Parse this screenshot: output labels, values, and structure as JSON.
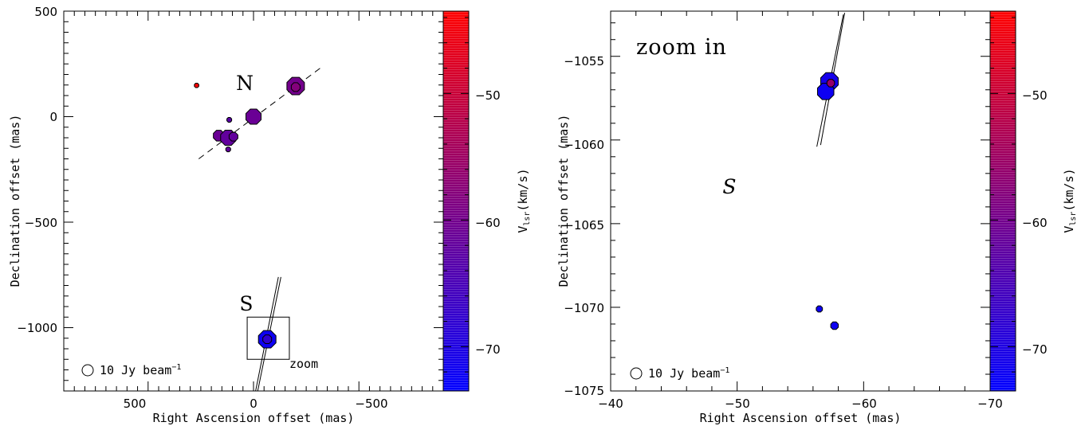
{
  "chart_data": [
    {
      "type": "scatter",
      "xlabel": "Right Ascension offset (mas)",
      "ylabel": "Declination offset (mas)",
      "xlim": [
        900,
        -900
      ],
      "ylim": [
        -1300,
        500
      ],
      "xticks": [
        {
          "value": 500,
          "label": "500"
        },
        {
          "value": 0,
          "label": "0"
        },
        {
          "value": -500,
          "label": "−500"
        }
      ],
      "yticks": [
        {
          "value": 500,
          "label": "500"
        },
        {
          "value": 0,
          "label": "0"
        },
        {
          "value": -500,
          "label": "−500"
        },
        {
          "value": -1000,
          "label": "−1000"
        }
      ],
      "colorbar": {
        "label": "V_lsr (km/s)",
        "label_main": "V",
        "label_sub": "lsr",
        "label_unit": "(km/s)",
        "vlim": [
          -73.5,
          -43.5
        ],
        "ticks": [
          {
            "value": -50,
            "label": "−50"
          },
          {
            "value": -60,
            "label": "−60"
          },
          {
            "value": -70,
            "label": "−70"
          }
        ],
        "color_low": "#0000ff",
        "color_high": "#ff0000"
      },
      "annotations": {
        "north": "N",
        "south": "S",
        "zoom": "zoom"
      },
      "legend": {
        "text": "10 Jy beam",
        "superscript": "−1",
        "placement": "bottom-left"
      },
      "fit_line": {
        "from": [
          260,
          -200
        ],
        "to": [
          -330,
          240
        ],
        "style": "dashed"
      },
      "jet_lines": [
        {
          "from": [
            -20,
            -1300
          ],
          "to": [
            -130,
            -760
          ]
        },
        {
          "from": [
            -10,
            -1300
          ],
          "to": [
            -118,
            -760
          ]
        }
      ],
      "zoom_box": {
        "x": [
          30,
          -170
        ],
        "y": [
          -1150,
          -950
        ]
      },
      "points": [
        {
          "x": 270,
          "y": 148,
          "v": -44,
          "flux": 0.4
        },
        {
          "x": -200,
          "y": 145,
          "v": -60,
          "flux": 8
        },
        {
          "x": -200,
          "y": 140,
          "v": -58,
          "flux": 2
        },
        {
          "x": 0,
          "y": 0,
          "v": -61,
          "flux": 6
        },
        {
          "x": 115,
          "y": -15,
          "v": -63,
          "flux": 0.6
        },
        {
          "x": 165,
          "y": -90,
          "v": -61,
          "flux": 3
        },
        {
          "x": 120,
          "y": -100,
          "v": -62,
          "flux": 6
        },
        {
          "x": 95,
          "y": -95,
          "v": -62,
          "flux": 2
        },
        {
          "x": 120,
          "y": -155,
          "v": -62,
          "flux": 0.6
        },
        {
          "x": -65,
          "y": -1055,
          "v": -72,
          "flux": 8
        },
        {
          "x": -65,
          "y": -1055,
          "v": -68,
          "flux": 2
        }
      ]
    },
    {
      "type": "scatter",
      "title": "zoom in",
      "xlabel": "Right Ascension offset (mas)",
      "ylabel": "Declination offset (mas)",
      "xlim": [
        -40,
        -70
      ],
      "ylim": [
        -1075,
        -1052.3
      ],
      "xticks": [
        {
          "value": -40,
          "label": "−40"
        },
        {
          "value": -50,
          "label": "−50"
        },
        {
          "value": -60,
          "label": "−60"
        },
        {
          "value": -70,
          "label": "−70"
        }
      ],
      "yticks": [
        {
          "value": -1055,
          "label": "−1055"
        },
        {
          "value": -1060,
          "label": "−1060"
        },
        {
          "value": -1065,
          "label": "−1065"
        },
        {
          "value": -1070,
          "label": "−1070"
        },
        {
          "value": -1075,
          "label": "−1075"
        }
      ],
      "colorbar": {
        "label": "V_lsr (km/s)",
        "label_main": "V",
        "label_sub": "lsr",
        "label_unit": "(km/s)",
        "vlim": [
          -73.5,
          -43.5
        ],
        "ticks": [
          {
            "value": -50,
            "label": "−50"
          },
          {
            "value": -60,
            "label": "−60"
          },
          {
            "value": -70,
            "label": "−70"
          }
        ],
        "color_low": "#0000ff",
        "color_high": "#ff0000"
      },
      "annotations": {
        "south": "S"
      },
      "legend": {
        "text": "10 Jy beam",
        "superscript": "−1",
        "placement": "bottom-left"
      },
      "jet_lines": [
        {
          "from": [
            -56.3,
            -1060.4
          ],
          "to": [
            -58.4,
            -1052.5
          ]
        },
        {
          "from": [
            -56.6,
            -1060.3
          ],
          "to": [
            -58.5,
            -1052.4
          ]
        }
      ],
      "points": [
        {
          "x": -57.3,
          "y": -1056.5,
          "v": -71,
          "flux": 8
        },
        {
          "x": -57.0,
          "y": -1057.1,
          "v": -72,
          "flux": 7
        },
        {
          "x": -57.4,
          "y": -1056.6,
          "v": -56,
          "flux": 1.5
        },
        {
          "x": -56.5,
          "y": -1070.1,
          "v": -72,
          "flux": 1
        },
        {
          "x": -57.7,
          "y": -1071.1,
          "v": -72,
          "flux": 1.5
        }
      ]
    }
  ]
}
